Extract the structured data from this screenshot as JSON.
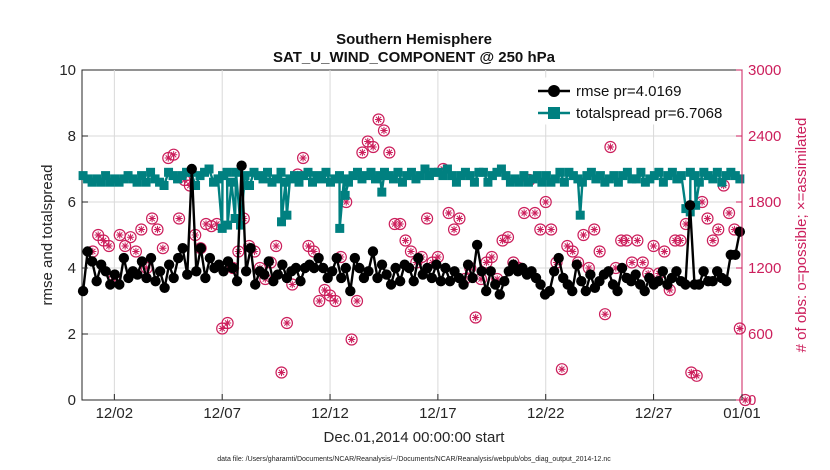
{
  "chart_data": {
    "type": "line",
    "title": [
      "Southern Hemisphere",
      "SAT_U_WIND_COMPONENT @ 250 hPa"
    ],
    "xlabel": "Dec.01,2014 00:00:00 start",
    "ylabel_left": "rmse and totalspread",
    "ylabel_right": "# of obs: o=possible; ×=assimilated",
    "footnote": "data file: /Users/gharamti/Documents/NCAR/Reanalysis/~/Documents/NCAR/Reanalysis/webpub/obs_diag_output_2014-12.nc",
    "xlim": [
      0.5,
      31.1
    ],
    "ylim_left": [
      0,
      10
    ],
    "ylim_right": [
      0,
      3000
    ],
    "x_ticks": [
      {
        "value": 2,
        "label": "12/02"
      },
      {
        "value": 7,
        "label": "12/07"
      },
      {
        "value": 12,
        "label": "12/12"
      },
      {
        "value": 17,
        "label": "12/17"
      },
      {
        "value": 22,
        "label": "12/22"
      },
      {
        "value": 27,
        "label": "12/27"
      },
      {
        "value": 32,
        "label": "01/01"
      }
    ],
    "y_left_ticks": [
      {
        "value": 0,
        "label": "0"
      },
      {
        "value": 2,
        "label": "2"
      },
      {
        "value": 4,
        "label": "4"
      },
      {
        "value": 6,
        "label": "6"
      },
      {
        "value": 8,
        "label": "8"
      },
      {
        "value": 10,
        "label": "10"
      }
    ],
    "y_right_ticks": [
      {
        "value": 0,
        "label": "0"
      },
      {
        "value": 600,
        "label": "600"
      },
      {
        "value": 1200,
        "label": "1200"
      },
      {
        "value": 1800,
        "label": "1800"
      },
      {
        "value": 2400,
        "label": "2400"
      },
      {
        "value": 3000,
        "label": "3000"
      }
    ],
    "colors": {
      "rmse": "#000000",
      "totalspread": "#008080",
      "obs": "#cc1f5c",
      "axis": "#262626",
      "grid": "#d9d9d9"
    },
    "series": [
      {
        "name": "rmse",
        "legend": "rmse pr=4.0169",
        "marker": "circle",
        "y_axis": "left",
        "values": [
          3.3,
          4.5,
          4.2,
          3.6,
          4.1,
          3.9,
          3.5,
          3.8,
          3.5,
          4.3,
          3.7,
          3.9,
          3.8,
          4.2,
          3.7,
          4.3,
          3.6,
          3.9,
          3.4,
          4.1,
          3.7,
          4.3,
          4.6,
          3.8,
          7.0,
          3.9,
          4.6,
          3.7,
          4.3,
          4.0,
          4.1,
          3.9,
          4.2,
          4.0,
          3.6,
          7.1,
          3.9,
          4.6,
          3.5,
          3.9,
          3.8,
          4.2,
          3.6,
          3.8,
          4.1,
          3.7,
          3.9,
          4.0,
          3.6,
          4.0,
          4.1,
          4.0,
          4.3,
          4.0,
          3.7,
          3.9,
          4.3,
          3.7,
          4.0,
          3.3,
          4.3,
          4.0,
          3.7,
          3.9,
          4.5,
          3.7,
          4.1,
          3.8,
          3.5,
          4.0,
          3.6,
          4.1,
          4.0,
          3.6,
          4.3,
          3.8,
          4.0,
          3.7,
          4.1,
          3.6,
          4.0,
          3.6,
          3.9,
          3.7,
          3.5,
          4.1,
          3.7,
          4.7,
          3.9,
          3.3,
          3.9,
          3.5,
          3.2,
          3.6,
          3.9,
          4.1,
          3.9,
          4.0,
          3.8,
          3.9,
          3.7,
          3.5,
          3.2,
          3.3,
          3.9,
          4.3,
          3.7,
          3.5,
          3.3,
          4.1,
          3.6,
          3.3,
          3.8,
          3.4,
          3.6,
          3.8,
          3.9,
          3.5,
          3.3,
          4.0,
          3.7,
          3.6,
          3.8,
          3.5,
          3.3,
          3.7,
          3.5,
          3.6,
          3.9,
          3.5,
          3.7,
          3.9,
          3.6,
          3.5,
          5.9,
          3.5,
          3.5,
          3.9,
          3.6,
          3.6,
          3.9,
          3.7,
          3.6,
          4.4,
          4.4,
          5.1
        ]
      },
      {
        "name": "totalspread",
        "legend": "totalspread pr=6.7068",
        "marker": "square",
        "y_axis": "left",
        "values": [
          6.8,
          6.7,
          6.6,
          6.7,
          6.6,
          6.8,
          6.6,
          6.7,
          6.6,
          6.7,
          6.8,
          6.7,
          6.6,
          6.8,
          6.6,
          6.9,
          6.7,
          6.6,
          6.5,
          6.9,
          6.8,
          6.7,
          6.8,
          6.9,
          6.9,
          6.5,
          6.8,
          6.9,
          7.0,
          6.6,
          6.7,
          6.8,
          6.9,
          6.6,
          6.9,
          5.3,
          6.8,
          6.5,
          6.9,
          6.8,
          6.7,
          6.9,
          6.6,
          6.7,
          6.9,
          6.6,
          6.7,
          6.8,
          6.6,
          6.8,
          6.9,
          6.6,
          6.8,
          6.7,
          6.9,
          6.6,
          6.7,
          6.8,
          6.7,
          6.6,
          6.8,
          6.9,
          6.7,
          6.8,
          6.9,
          6.7,
          6.8,
          6.9,
          6.8,
          6.7,
          6.9,
          6.6,
          6.8,
          6.9,
          6.7,
          6.8,
          7.0,
          6.8,
          6.9,
          6.9,
          6.8,
          7.0,
          6.8,
          6.6,
          6.8,
          6.9,
          6.8,
          6.6,
          6.9,
          6.9,
          6.6,
          6.8,
          6.9,
          7.0,
          6.8,
          6.6,
          6.7,
          6.6,
          6.8,
          6.6,
          6.7,
          6.8,
          6.6,
          6.8,
          6.6,
          6.7,
          6.9,
          6.6,
          6.9,
          6.8,
          6.7,
          6.6,
          6.8,
          6.9,
          6.7,
          6.8,
          6.6,
          6.7,
          6.8,
          6.6,
          6.8,
          6.9,
          6.7,
          6.7,
          6.9,
          6.6,
          6.7,
          6.8,
          6.9,
          6.6,
          6.8,
          6.9,
          6.7,
          6.8,
          5.8,
          6.9,
          6.8,
          6.6,
          6.9,
          6.8,
          6.7,
          6.9,
          6.6,
          6.8,
          6.9,
          6.8,
          6.7
        ],
        "dips": [
          {
            "x": 7.0,
            "y": 5.2
          },
          {
            "x": 7.25,
            "y": 5.3
          },
          {
            "x": 7.6,
            "y": 5.5
          },
          {
            "x": 9.75,
            "y": 5.4
          },
          {
            "x": 10.0,
            "y": 5.6
          },
          {
            "x": 12.45,
            "y": 5.2
          },
          {
            "x": 12.7,
            "y": 6.2
          },
          {
            "x": 14.4,
            "y": 6.3
          },
          {
            "x": 23.6,
            "y": 5.6
          },
          {
            "x": 28.7,
            "y": 5.7
          },
          {
            "x": 28.95,
            "y": 5.9
          }
        ]
      }
    ],
    "obs_counts": {
      "marker": "circle-star",
      "y_axis": "right",
      "points": [
        [
          1.0,
          1350
        ],
        [
          1.25,
          1500
        ],
        [
          1.5,
          1450
        ],
        [
          1.75,
          1400
        ],
        [
          2.0,
          1100
        ],
        [
          2.25,
          1500
        ],
        [
          2.5,
          1400
        ],
        [
          2.75,
          1480
        ],
        [
          3.0,
          1350
        ],
        [
          3.25,
          1550
        ],
        [
          3.5,
          1200
        ],
        [
          3.75,
          1650
        ],
        [
          4.0,
          1550
        ],
        [
          4.25,
          1380
        ],
        [
          4.5,
          2200
        ],
        [
          4.75,
          2230
        ],
        [
          5.0,
          1650
        ],
        [
          5.25,
          2000
        ],
        [
          5.5,
          1950
        ],
        [
          5.75,
          1500
        ],
        [
          6.0,
          1380
        ],
        [
          6.25,
          1600
        ],
        [
          6.5,
          1580
        ],
        [
          6.75,
          1600
        ],
        [
          7.0,
          650
        ],
        [
          7.25,
          700
        ],
        [
          7.5,
          1200
        ],
        [
          7.75,
          1350
        ],
        [
          8.0,
          1650
        ],
        [
          8.25,
          1400
        ],
        [
          8.5,
          1350
        ],
        [
          8.75,
          1200
        ],
        [
          9.0,
          1100
        ],
        [
          9.25,
          1250
        ],
        [
          9.5,
          1400
        ],
        [
          9.75,
          250
        ],
        [
          10.0,
          700
        ],
        [
          10.25,
          1050
        ],
        [
          10.5,
          2050
        ],
        [
          10.75,
          2200
        ],
        [
          11.0,
          1400
        ],
        [
          11.25,
          1350
        ],
        [
          11.5,
          900
        ],
        [
          11.75,
          1000
        ],
        [
          12.0,
          950
        ],
        [
          12.25,
          900
        ],
        [
          12.5,
          1300
        ],
        [
          12.75,
          1800
        ],
        [
          13.0,
          550
        ],
        [
          13.25,
          900
        ],
        [
          13.5,
          2250
        ],
        [
          13.75,
          2350
        ],
        [
          14.0,
          2300
        ],
        [
          14.25,
          2550
        ],
        [
          14.5,
          2450
        ],
        [
          14.75,
          2250
        ],
        [
          15.0,
          1600
        ],
        [
          15.25,
          1600
        ],
        [
          15.5,
          1450
        ],
        [
          15.75,
          1350
        ],
        [
          16.0,
          1250
        ],
        [
          16.25,
          1300
        ],
        [
          16.5,
          1650
        ],
        [
          16.75,
          1250
        ],
        [
          17.0,
          1300
        ],
        [
          17.25,
          2100
        ],
        [
          17.5,
          1700
        ],
        [
          17.75,
          1550
        ],
        [
          18.0,
          1650
        ],
        [
          18.25,
          1100
        ],
        [
          18.5,
          1200
        ],
        [
          18.75,
          750
        ],
        [
          19.0,
          1100
        ],
        [
          19.25,
          1250
        ],
        [
          19.5,
          1300
        ],
        [
          19.75,
          1100
        ],
        [
          20.0,
          1450
        ],
        [
          20.25,
          1480
        ],
        [
          20.5,
          1250
        ],
        [
          20.75,
          1200
        ],
        [
          21.0,
          1700
        ],
        [
          21.25,
          2000
        ],
        [
          21.5,
          1700
        ],
        [
          21.75,
          1550
        ],
        [
          22.0,
          1800
        ],
        [
          22.25,
          1550
        ],
        [
          22.5,
          1250
        ],
        [
          22.75,
          280
        ],
        [
          23.0,
          1400
        ],
        [
          23.25,
          1350
        ],
        [
          23.5,
          1250
        ],
        [
          23.75,
          1500
        ],
        [
          24.0,
          1200
        ],
        [
          24.25,
          1550
        ],
        [
          24.5,
          1350
        ],
        [
          24.75,
          780
        ],
        [
          25.0,
          2300
        ],
        [
          25.25,
          1200
        ],
        [
          25.5,
          1450
        ],
        [
          25.75,
          1450
        ],
        [
          26.0,
          1250
        ],
        [
          26.25,
          1450
        ],
        [
          26.5,
          1250
        ],
        [
          26.75,
          1150
        ],
        [
          27.0,
          1400
        ],
        [
          27.25,
          1150
        ],
        [
          27.5,
          1350
        ],
        [
          27.75,
          1000
        ],
        [
          28.0,
          1450
        ],
        [
          28.25,
          1450
        ],
        [
          28.5,
          1600
        ],
        [
          28.75,
          250
        ],
        [
          29.0,
          220
        ],
        [
          29.25,
          1800
        ],
        [
          29.5,
          1650
        ],
        [
          29.75,
          1450
        ],
        [
          30.0,
          1550
        ],
        [
          30.25,
          1950
        ],
        [
          30.5,
          1700
        ],
        [
          30.75,
          1550
        ],
        [
          31.0,
          650
        ],
        [
          31.25,
          0
        ]
      ]
    }
  }
}
